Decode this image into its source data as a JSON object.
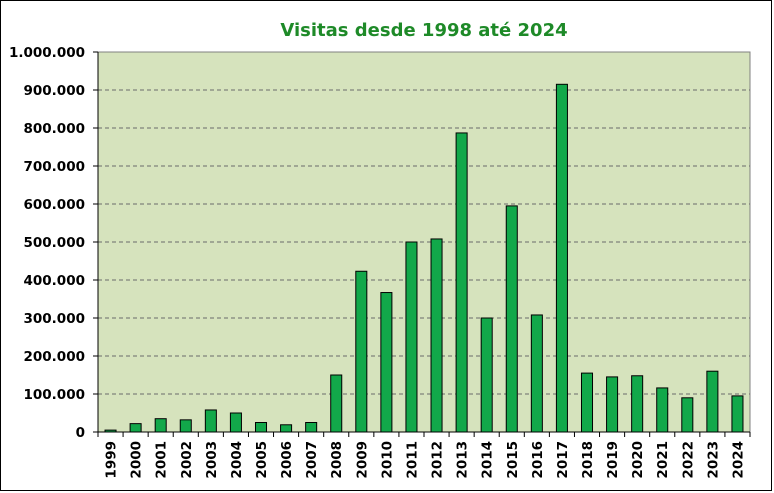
{
  "chart_data": {
    "type": "bar",
    "title": "Visitas desde 1998 até 2024",
    "xlabel": "",
    "ylabel": "",
    "ylim": [
      0,
      1000000
    ],
    "yticks": [
      "0",
      "100.000",
      "200.000",
      "300.000",
      "400.000",
      "500.000",
      "600.000",
      "700.000",
      "800.000",
      "900.000",
      "1.000.000"
    ],
    "grid": true,
    "legend": "none",
    "colors": {
      "bar": "#12a84a",
      "bar_stroke": "#000000",
      "plot_bg": "#d6e3bd",
      "title": "#1e8a28"
    },
    "categories": [
      "1999",
      "2000",
      "2001",
      "2002",
      "2003",
      "2004",
      "2005",
      "2006",
      "2007",
      "2008",
      "2009",
      "2010",
      "2011",
      "2012",
      "2013",
      "2014",
      "2015",
      "2016",
      "2017",
      "2018",
      "2019",
      "2020",
      "2021",
      "2022",
      "2023",
      "2024"
    ],
    "values": [
      5000,
      22000,
      35000,
      32000,
      58000,
      50000,
      25000,
      19000,
      25000,
      150000,
      423000,
      367000,
      500000,
      508000,
      787000,
      300000,
      595000,
      308000,
      915000,
      155000,
      145000,
      148000,
      116000,
      90000,
      160000,
      95000
    ]
  }
}
